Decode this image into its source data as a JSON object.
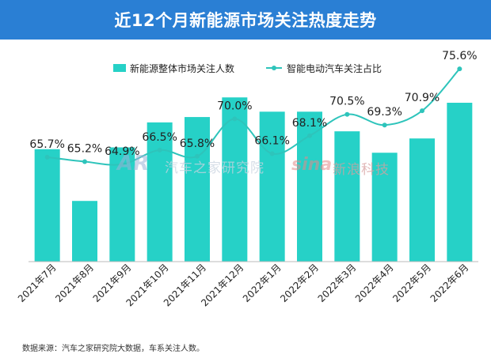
{
  "header": {
    "title": "近12个月新能源市场关注热度走势"
  },
  "watermarks": {
    "logo": "AR",
    "autohome": "汽车之家研究院",
    "sina": "sina",
    "sina_cn": "新浪科技"
  },
  "source": "数据来源：汽车之家研究院大数据，车系关注人数。",
  "colors": {
    "bar": "#26d1c7",
    "line": "#2ec4bb",
    "header": "#2a7fd4"
  },
  "chart_data": {
    "type": "bar+line",
    "title": "近12个月新能源市场关注热度走势",
    "categories": [
      "2021年7月",
      "2021年8月",
      "2021年9月",
      "2021年10月",
      "2021年11月",
      "2021年12月",
      "2022年1月",
      "2022年2月",
      "2022年3月",
      "2022年4月",
      "2022年5月",
      "2022年6月"
    ],
    "series": [
      {
        "name": "新能源整体市场关注人数",
        "type": "bar",
        "axis": "left",
        "values": [
          63,
          34,
          64,
          78,
          81,
          92,
          84,
          84,
          73,
          61,
          69,
          89
        ],
        "ylim": [
          0,
          120
        ]
      },
      {
        "name": "智能电动汽车关注占比",
        "type": "line",
        "axis": "right",
        "values": [
          65.7,
          65.2,
          64.9,
          66.5,
          65.8,
          70.0,
          66.1,
          68.1,
          70.5,
          69.3,
          70.9,
          75.6
        ],
        "labels": [
          "65.7%",
          "65.2%",
          "64.9%",
          "66.5%",
          "65.8%",
          "70.0%",
          "66.1%",
          "68.1%",
          "70.5%",
          "69.3%",
          "70.9%",
          "75.6%"
        ],
        "ylim": [
          54,
          78
        ]
      }
    ],
    "legend": "top-center",
    "grid": false
  }
}
